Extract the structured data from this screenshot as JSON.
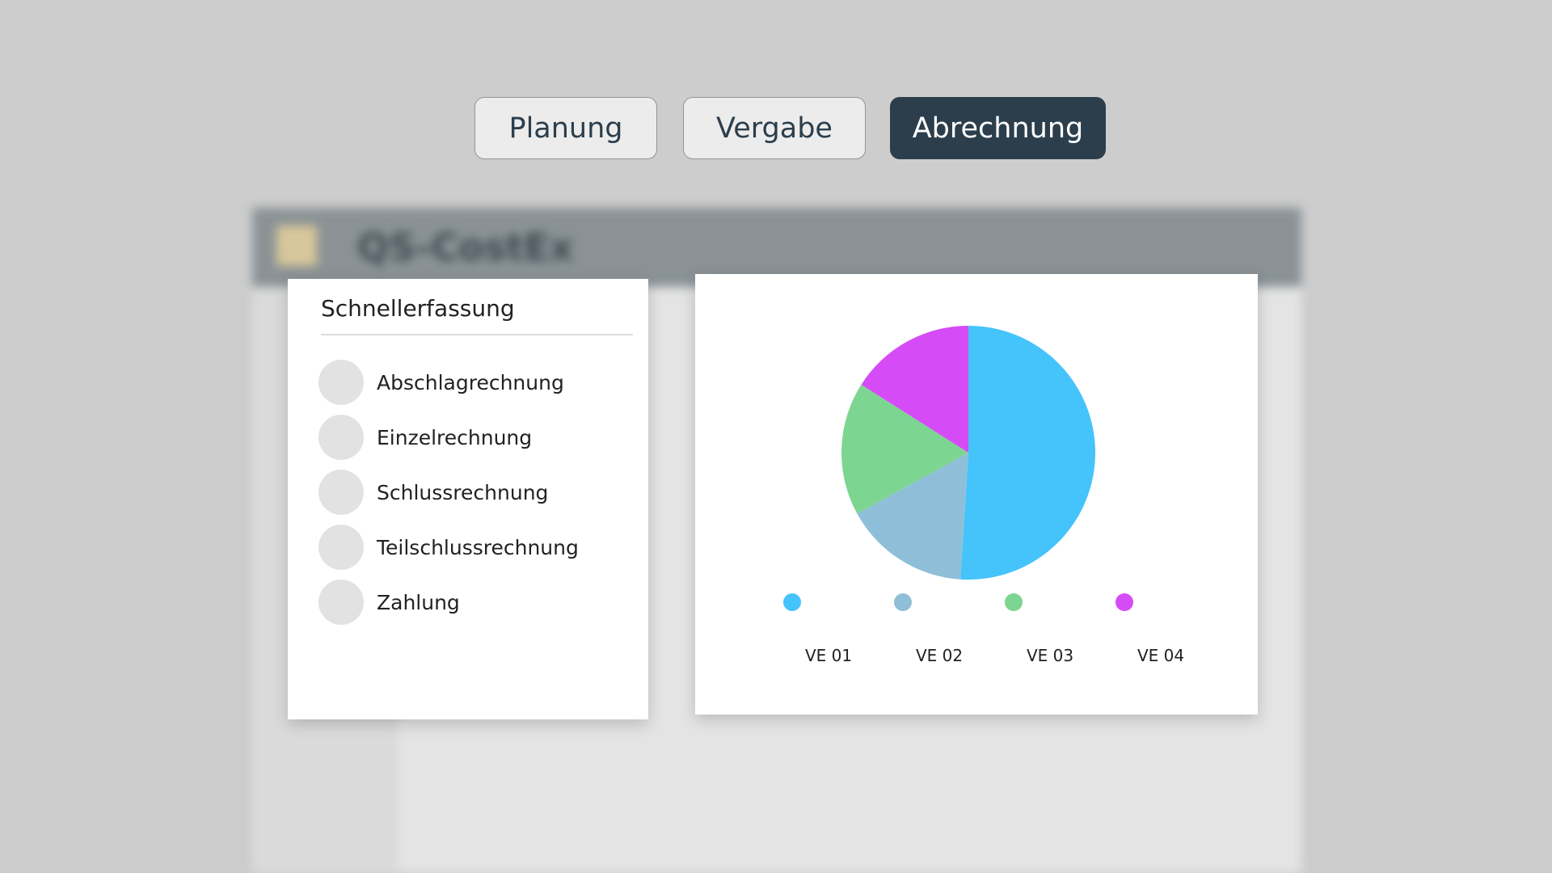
{
  "app": {
    "title": "QS-CostEx"
  },
  "tabs": [
    "Planung",
    "Vergabe",
    "Abrechnung"
  ],
  "panel": {
    "title": "Schnellerfassung",
    "items": [
      "Abschlagrechnung",
      "Einzelrechnung",
      "Schlussrechnung",
      "Teilschlussrechnung",
      "Zahlung"
    ]
  },
  "chart_data": {
    "type": "pie",
    "categories": [
      "VE 01",
      "VE 02",
      "VE 03",
      "VE 04"
    ],
    "values": [
      51,
      16,
      17,
      16
    ],
    "colors": [
      "#45c3fb",
      "#8fbfd8",
      "#7dd592",
      "#d54cf7"
    ]
  }
}
